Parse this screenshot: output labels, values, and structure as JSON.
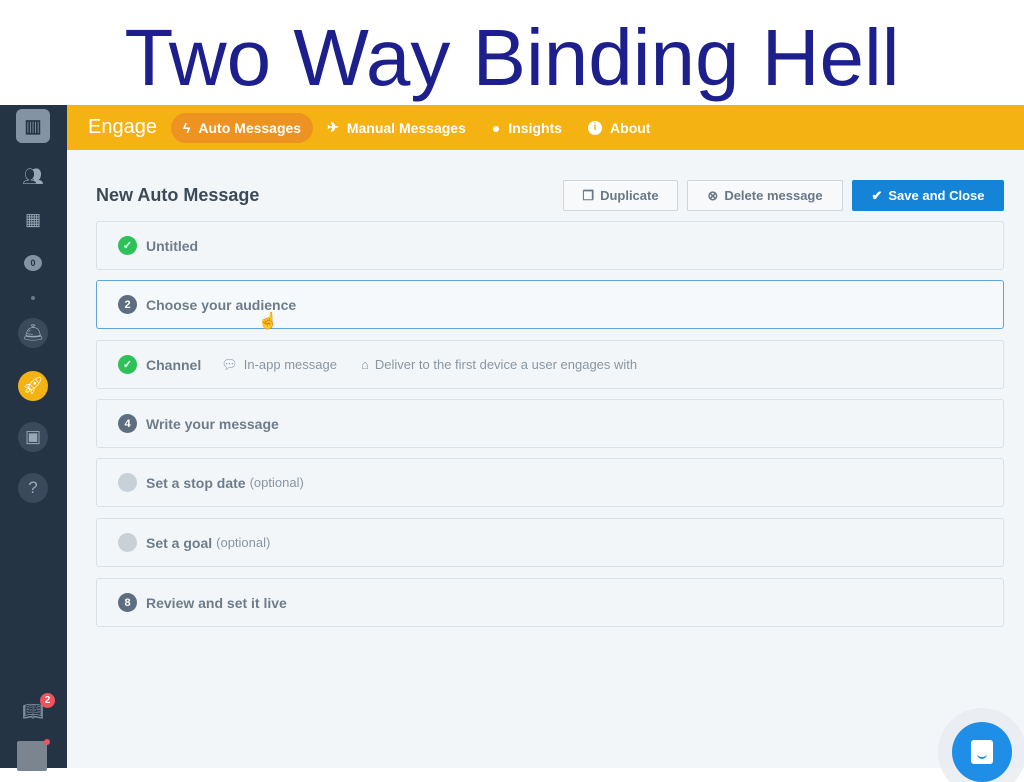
{
  "slide_title": "Two Way Binding Hell",
  "sidebar": {
    "icons": [
      "logo-icon",
      "people-icon",
      "companies-icon",
      "chat-icon",
      "dot",
      "bell-icon",
      "rocket-icon",
      "articles-icon",
      "help-icon"
    ],
    "chat_count": "0",
    "notifications_count": "2"
  },
  "topbar": {
    "brand": "Engage",
    "nav": [
      {
        "label": "Auto Messages",
        "icon": "bolt-icon",
        "active": true
      },
      {
        "label": "Manual Messages",
        "icon": "paper-plane-icon"
      },
      {
        "label": "Insights",
        "icon": "lightbulb-icon"
      },
      {
        "label": "About",
        "icon": "info-icon"
      }
    ],
    "accent": "#f4b213"
  },
  "page": {
    "title": "New Auto Message",
    "buttons": {
      "duplicate": "Duplicate",
      "delete": "Delete message",
      "save": "Save and Close"
    }
  },
  "steps": [
    {
      "badge": "✓",
      "label": "Untitled",
      "state": "done"
    },
    {
      "badge": "2",
      "label": "Choose your audience",
      "state": "active"
    },
    {
      "badge": "✓",
      "label": "Channel",
      "state": "done",
      "meta": [
        "In-app message",
        "Deliver to the first device a user engages with"
      ]
    },
    {
      "badge": "4",
      "label": "Write your message",
      "state": "todo"
    },
    {
      "badge": "",
      "label": "Set a stop date",
      "optional": "(optional)",
      "state": "optional"
    },
    {
      "badge": "",
      "label": "Set a goal",
      "optional": "(optional)",
      "state": "optional"
    },
    {
      "badge": "8",
      "label": "Review and set it live",
      "state": "todo"
    }
  ]
}
